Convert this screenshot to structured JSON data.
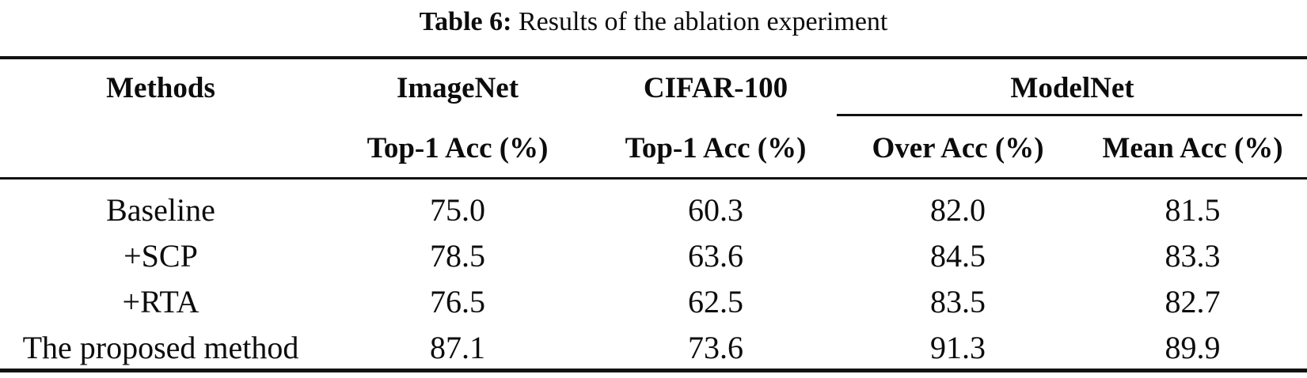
{
  "caption": {
    "label": "Table 6:",
    "text": "Results of the ablation experiment"
  },
  "table": {
    "header": {
      "methods": "Methods",
      "group_imagenet": "ImageNet",
      "group_cifar": "CIFAR-100",
      "group_modelnet": "ModelNet",
      "sub_imagenet": "Top-1 Acc (%)",
      "sub_cifar": "Top-1 Acc (%)",
      "sub_over": "Over Acc (%)",
      "sub_mean": "Mean Acc (%)"
    },
    "rows": [
      {
        "method": "Baseline",
        "imagenet": "75.0",
        "cifar": "60.3",
        "over": "82.0",
        "mean": "81.5"
      },
      {
        "method": "+SCP",
        "imagenet": "78.5",
        "cifar": "63.6",
        "over": "84.5",
        "mean": "83.3"
      },
      {
        "method": "+RTA",
        "imagenet": "76.5",
        "cifar": "62.5",
        "over": "83.5",
        "mean": "82.7"
      },
      {
        "method": "The proposed method",
        "imagenet": "87.1",
        "cifar": "73.6",
        "over": "91.3",
        "mean": "89.9"
      }
    ]
  },
  "colors": {
    "text": "#0c0c0c",
    "rule": "#111111",
    "background": "#ffffff"
  }
}
